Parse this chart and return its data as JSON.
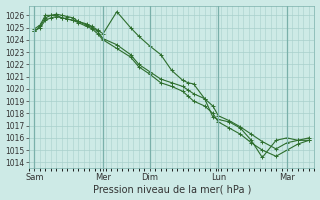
{
  "title": "",
  "xlabel": "Pression niveau de la mer( hPa )",
  "ylim": [
    1013.5,
    1026.8
  ],
  "yticks": [
    1014,
    1015,
    1016,
    1017,
    1018,
    1019,
    1020,
    1021,
    1022,
    1023,
    1024,
    1025,
    1026
  ],
  "bg_color": "#cdeae6",
  "grid_color": "#a8d0cc",
  "line_color": "#2d6e2d",
  "day_labels": [
    "Sam",
    "Mer",
    "Dim",
    "Lun",
    "Mar"
  ],
  "day_positions": [
    0.0,
    0.25,
    0.42,
    0.67,
    0.92
  ],
  "vline_color": "#7ab0aa",
  "line1_x": [
    0.0,
    0.02,
    0.04,
    0.06,
    0.08,
    0.1,
    0.12,
    0.14,
    0.16,
    0.19,
    0.21,
    0.23,
    0.25,
    0.3,
    0.35,
    0.38,
    0.42,
    0.46,
    0.5,
    0.54,
    0.56,
    0.58,
    0.62,
    0.65,
    0.67,
    0.71,
    0.75,
    0.79,
    0.83,
    0.88,
    0.92,
    0.96,
    1.0
  ],
  "line1_y": [
    1024.7,
    1025.1,
    1025.8,
    1026.0,
    1026.0,
    1025.8,
    1025.7,
    1025.6,
    1025.5,
    1025.3,
    1025.1,
    1024.8,
    1024.5,
    1026.3,
    1025.0,
    1024.3,
    1023.5,
    1022.8,
    1021.5,
    1020.7,
    1020.5,
    1020.4,
    1019.2,
    1017.7,
    1017.5,
    1017.3,
    1016.8,
    1015.8,
    1014.4,
    1015.8,
    1016.0,
    1015.8,
    1016.0
  ],
  "line2_x": [
    0.0,
    0.02,
    0.04,
    0.06,
    0.08,
    0.1,
    0.12,
    0.14,
    0.16,
    0.19,
    0.21,
    0.23,
    0.25,
    0.3,
    0.35,
    0.38,
    0.42,
    0.46,
    0.5,
    0.54,
    0.56,
    0.58,
    0.62,
    0.65,
    0.67,
    0.71,
    0.75,
    0.79,
    0.83,
    0.88,
    0.92,
    0.96,
    1.0
  ],
  "line2_y": [
    1024.9,
    1025.2,
    1026.0,
    1026.0,
    1026.1,
    1026.0,
    1025.9,
    1025.8,
    1025.5,
    1025.2,
    1025.0,
    1024.7,
    1024.1,
    1023.6,
    1022.8,
    1022.0,
    1021.4,
    1020.8,
    1020.5,
    1020.2,
    1019.9,
    1019.6,
    1019.2,
    1018.6,
    1017.8,
    1017.4,
    1016.9,
    1016.3,
    1015.7,
    1015.1,
    1015.6,
    1015.8,
    1015.8
  ],
  "line3_x": [
    0.0,
    0.02,
    0.04,
    0.06,
    0.08,
    0.1,
    0.12,
    0.14,
    0.16,
    0.19,
    0.21,
    0.23,
    0.25,
    0.3,
    0.35,
    0.38,
    0.42,
    0.46,
    0.5,
    0.54,
    0.56,
    0.58,
    0.62,
    0.65,
    0.67,
    0.71,
    0.75,
    0.79,
    0.83,
    0.88,
    0.92,
    0.96,
    1.0
  ],
  "line3_y": [
    1024.7,
    1025.0,
    1025.6,
    1025.8,
    1025.9,
    1025.8,
    1025.7,
    1025.6,
    1025.4,
    1025.1,
    1024.9,
    1024.5,
    1024.0,
    1023.3,
    1022.6,
    1021.8,
    1021.2,
    1020.5,
    1020.2,
    1019.8,
    1019.4,
    1019.0,
    1018.6,
    1018.0,
    1017.3,
    1016.8,
    1016.3,
    1015.6,
    1015.0,
    1014.5,
    1015.0,
    1015.5,
    1015.8
  ],
  "xlabel_fontsize": 7,
  "ytick_fontsize": 5.5,
  "xtick_fontsize": 6
}
